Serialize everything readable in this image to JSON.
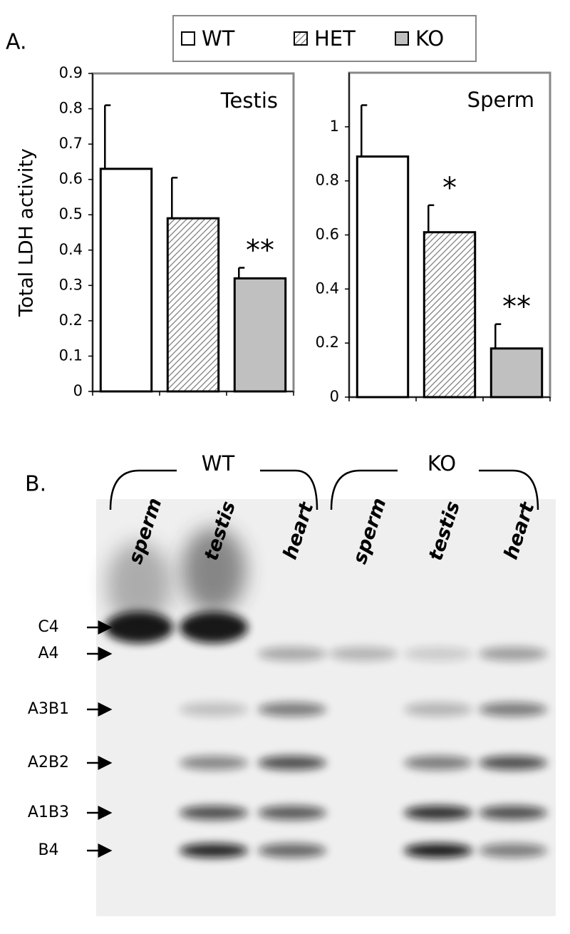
{
  "panel_labels": [
    "A.",
    "B."
  ],
  "chart_data": [
    {
      "type": "bar",
      "title": "Testis",
      "y_label": "Total LDH activity",
      "ylim": [
        0,
        0.9
      ],
      "yticks": [
        0,
        0.1,
        0.2,
        0.3,
        0.4,
        0.5,
        0.6,
        0.7,
        0.8,
        0.9
      ],
      "series": [
        {
          "name": "WT",
          "color": "#ffffff",
          "values": [
            0.63
          ],
          "errors": [
            0.18
          ]
        },
        {
          "name": "HET",
          "color": "#ffffff",
          "hatch": true,
          "values": [
            0.49
          ],
          "errors": [
            0.115
          ]
        },
        {
          "name": "KO",
          "color": "#c0c0c0",
          "values": [
            0.32
          ],
          "errors": [
            0.03
          ],
          "annotation": "**"
        }
      ]
    },
    {
      "type": "bar",
      "title": "Sperm",
      "ylim": [
        0,
        1.2
      ],
      "yticks": [
        0,
        0.2,
        0.4,
        0.6,
        0.8,
        1
      ],
      "series": [
        {
          "name": "WT",
          "color": "#ffffff",
          "values": [
            0.89
          ],
          "errors": [
            0.19
          ]
        },
        {
          "name": "HET",
          "color": "#ffffff",
          "hatch": true,
          "values": [
            0.61
          ],
          "errors": [
            0.1
          ],
          "annotation": "*"
        },
        {
          "name": "KO",
          "color": "#c0c0c0",
          "values": [
            0.18
          ],
          "errors": [
            0.09
          ],
          "annotation": "**"
        }
      ]
    }
  ],
  "gel": {
    "groups": [
      "WT",
      "KO"
    ],
    "lanes": [
      "sperm",
      "testis",
      "heart",
      "sperm",
      "testis",
      "heart"
    ],
    "bands": [
      "C4",
      "A4",
      "A3B1",
      "A2B2",
      "A1B3",
      "B4"
    ]
  }
}
